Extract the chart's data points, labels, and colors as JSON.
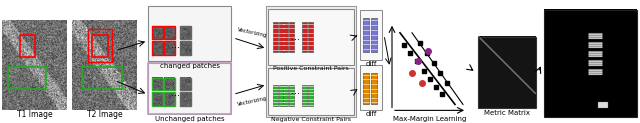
{
  "labels": {
    "t1": "T1 Image",
    "t2": "T2 Image",
    "changed": "changed patches",
    "unchanged": "Unchanged patches",
    "positive": "Positive Constraint Pairs",
    "negative": "Negative Constraint Pairs",
    "diff": "diff",
    "diff2": "diff",
    "maxmargin": "Max-Margin Learning",
    "metric": "Metric Matrix"
  },
  "vectorizing_text": "Vectorizing",
  "vectorizing_text2": "Vectorizing",
  "fig_width": 6.4,
  "fig_height": 1.23,
  "dpi": 100,
  "red": "#cc2222",
  "green": "#33aa33",
  "orange": "#dd8800",
  "blue_gray": "#7777cc",
  "purple": "#882288",
  "red2": "#cc3333"
}
